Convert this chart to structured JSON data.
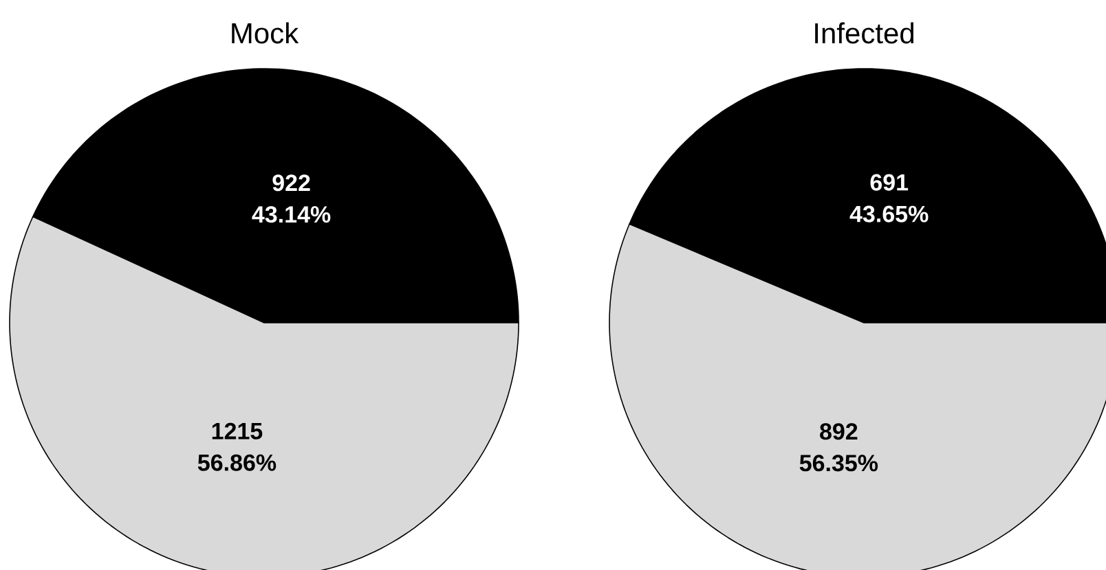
{
  "chart_data": [
    {
      "type": "pie",
      "title": "Mock",
      "categories": [
        null,
        null
      ],
      "values": [
        43.14,
        56.86
      ],
      "value_labels": [
        "43.14%",
        "56.86%"
      ],
      "annotations": [
        "922",
        "1215"
      ],
      "colors": [
        "#000000",
        "#d9d9d9"
      ]
    },
    {
      "type": "pie",
      "title": "Infected",
      "categories": [
        null,
        null
      ],
      "values": [
        43.65,
        56.35
      ],
      "value_labels": [
        "43.65%",
        "56.35%"
      ],
      "annotations": [
        "691",
        "892"
      ],
      "colors": [
        "#000000",
        "#d9d9d9"
      ]
    }
  ]
}
